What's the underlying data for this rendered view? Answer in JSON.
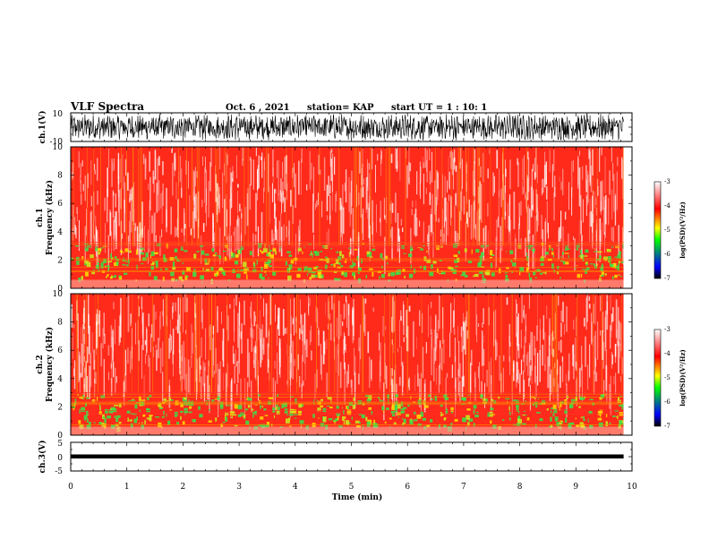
{
  "header": {
    "title": "VLF Spectra",
    "date": "Oct. 6 , 2021",
    "station": "station= KAP",
    "start": "start UT =  1 : 10: 1"
  },
  "chart_data": [
    {
      "type": "line",
      "ylabel": "ch.1(V)",
      "ylim": [
        -10,
        10
      ],
      "yticks": [
        "10",
        "-10"
      ],
      "xlim": [
        0,
        10
      ]
    },
    {
      "type": "heatmap",
      "ylabel_line1": "ch.1",
      "ylabel_line2": "Frequency (kHz)",
      "ylim": [
        0,
        10
      ],
      "yticks": [
        "0",
        "2",
        "4",
        "6",
        "8",
        "10"
      ],
      "xlim": [
        0,
        10
      ],
      "data_extent_min": 9.85,
      "colorbar": {
        "label": "log(PSD)(V²/Hz)",
        "range": [
          -7,
          -3
        ],
        "ticks": [
          "-3",
          "-4",
          "-5",
          "-6",
          "-7"
        ],
        "colors": [
          "#000000",
          "#0000ff",
          "#00ff00",
          "#ffff00",
          "#ff0000",
          "#ffffff"
        ]
      }
    },
    {
      "type": "heatmap",
      "ylabel_line1": "ch.2",
      "ylabel_line2": "Frequency (kHz)",
      "ylim": [
        0,
        10
      ],
      "yticks": [
        "0",
        "2",
        "4",
        "6",
        "8",
        "10"
      ],
      "xlim": [
        0,
        10
      ],
      "data_extent_min": 9.85,
      "colorbar": {
        "label": "log(PSD)(V²/Hz)",
        "range": [
          -7,
          -3
        ],
        "ticks": [
          "-3",
          "-4",
          "-5",
          "-6",
          "-7"
        ],
        "colors": [
          "#000000",
          "#0000ff",
          "#00ff00",
          "#ffff00",
          "#ff0000",
          "#ffffff"
        ]
      }
    },
    {
      "type": "line",
      "ylabel": "ch.3(V)",
      "ylim": [
        -5,
        5
      ],
      "yticks": [
        "5",
        "0",
        "-5"
      ],
      "xlim": [
        0,
        10
      ],
      "xlabel": "Time (min)",
      "xticks": [
        "0",
        "1",
        "2",
        "3",
        "4",
        "5",
        "6",
        "7",
        "8",
        "9",
        "10"
      ]
    }
  ]
}
